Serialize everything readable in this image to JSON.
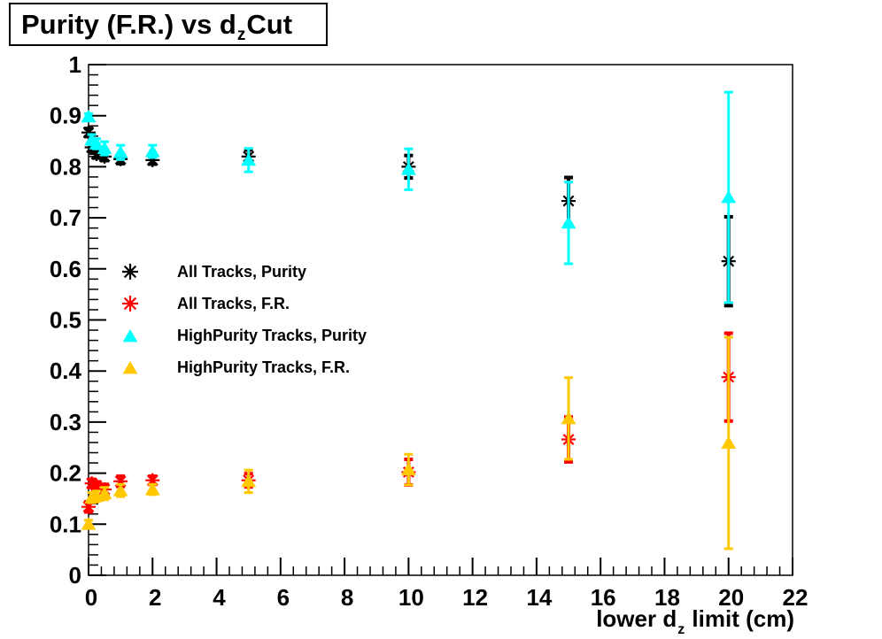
{
  "title": {
    "part1": "Purity (F.R.) vs d",
    "sub": "z",
    "part2": "Cut"
  },
  "x_axis_title": {
    "part1": "lower d",
    "sub": "z",
    "part2": " limit (cm)"
  },
  "chart_data": {
    "type": "scatter",
    "title": "Purity (F.R.) vs d_z Cut",
    "xlabel": "lower d_z limit (cm)",
    "ylabel": "",
    "xlim": [
      0,
      22
    ],
    "ylim": [
      0,
      1
    ],
    "grid": false,
    "legend_position": "middle-left",
    "x_tick_values": [
      0,
      2,
      4,
      6,
      8,
      10,
      12,
      14,
      16,
      18,
      20,
      22
    ],
    "x_tick_labels": [
      "0",
      "2",
      "4",
      "6",
      "8",
      "10",
      "12",
      "14",
      "16",
      "18",
      "20",
      "22"
    ],
    "x_minor_step": 0.4,
    "y_tick_values": [
      0,
      0.1,
      0.2,
      0.3,
      0.4,
      0.5,
      0.6,
      0.7,
      0.8,
      0.9,
      1
    ],
    "y_tick_labels": [
      "0",
      "0.1",
      "0.2",
      "0.3",
      "0.4",
      "0.5",
      "0.6",
      "0.7",
      "0.8",
      "0.9",
      "1"
    ],
    "y_minor_step": 0.02,
    "x": [
      0,
      0.1,
      0.25,
      0.5,
      1,
      2,
      5,
      10,
      15,
      20
    ],
    "series": [
      {
        "name": "All Tracks, Purity",
        "marker": "asterisk",
        "color": "#000000",
        "values": [
          0.867,
          0.838,
          0.825,
          0.82,
          0.815,
          0.813,
          0.82,
          0.8,
          0.733,
          0.615
        ],
        "errors": [
          0.008,
          0.008,
          0.008,
          0.008,
          0.009,
          0.008,
          0.013,
          0.022,
          0.046,
          0.087
        ]
      },
      {
        "name": "All Tracks, F.R.",
        "marker": "asterisk",
        "color": "#FF0000",
        "values": [
          0.134,
          0.18,
          0.175,
          0.168,
          0.184,
          0.186,
          0.186,
          0.202,
          0.266,
          0.388
        ],
        "errors": [
          0.01,
          0.008,
          0.008,
          0.01,
          0.01,
          0.008,
          0.013,
          0.025,
          0.044,
          0.086
        ]
      },
      {
        "name": "HighPurity Tracks, Purity",
        "marker": "triangle",
        "color": "#00FFFF",
        "values": [
          0.898,
          0.853,
          0.845,
          0.836,
          0.828,
          0.83,
          0.813,
          0.795,
          0.69,
          0.74
        ],
        "errors": [
          0.006,
          0.01,
          0.01,
          0.013,
          0.014,
          0.012,
          0.023,
          0.04,
          0.08,
          0.206
        ]
      },
      {
        "name": "HighPurity Tracks, F.R.",
        "marker": "triangle",
        "color": "#FFC800",
        "values": [
          0.1,
          0.152,
          0.155,
          0.16,
          0.166,
          0.168,
          0.184,
          0.207,
          0.307,
          0.259
        ],
        "errors": [
          0.008,
          0.01,
          0.01,
          0.012,
          0.012,
          0.01,
          0.022,
          0.03,
          0.08,
          0.207
        ]
      }
    ]
  }
}
